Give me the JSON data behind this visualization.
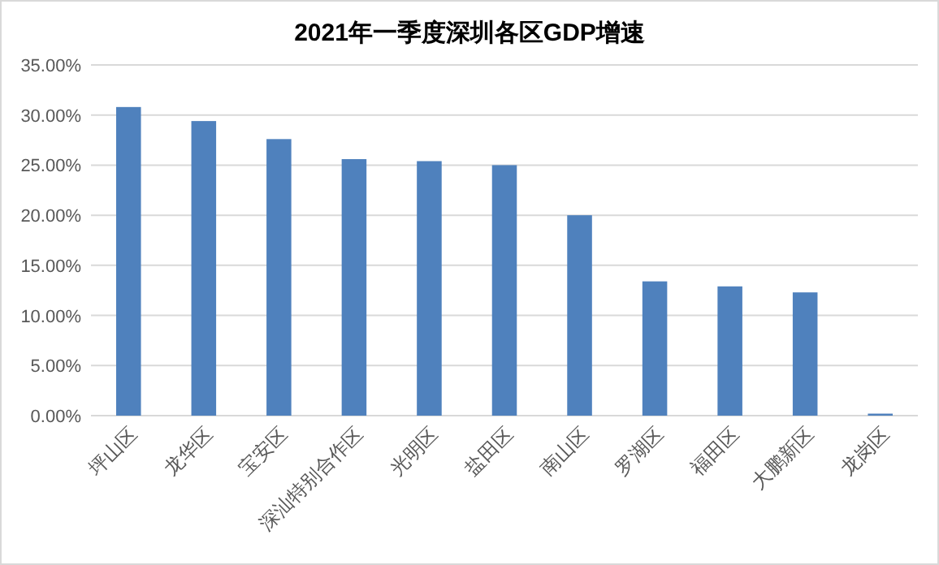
{
  "chart_data": {
    "type": "bar",
    "title": "2021年一季度深圳各区GDP增速",
    "categories": [
      "坪山区",
      "龙华区",
      "宝安区",
      "深汕特别合作区",
      "光明区",
      "盐田区",
      "南山区",
      "罗湖区",
      "福田区",
      "大鹏新区",
      "龙岗区"
    ],
    "values": [
      30.8,
      29.4,
      27.6,
      25.6,
      25.4,
      25.0,
      20.0,
      13.4,
      12.9,
      12.3,
      0.2
    ],
    "color": "#4f81bd",
    "ylim": [
      0,
      35
    ],
    "yticks": [
      {
        "value": 0,
        "label": "0.00%"
      },
      {
        "value": 5,
        "label": "5.00%"
      },
      {
        "value": 10,
        "label": "10.00%"
      },
      {
        "value": 15,
        "label": "15.00%"
      },
      {
        "value": 20,
        "label": "20.00%"
      },
      {
        "value": 25,
        "label": "25.00%"
      },
      {
        "value": 30,
        "label": "30.00%"
      },
      {
        "value": 35,
        "label": "35.00%"
      }
    ],
    "grid": "y"
  }
}
